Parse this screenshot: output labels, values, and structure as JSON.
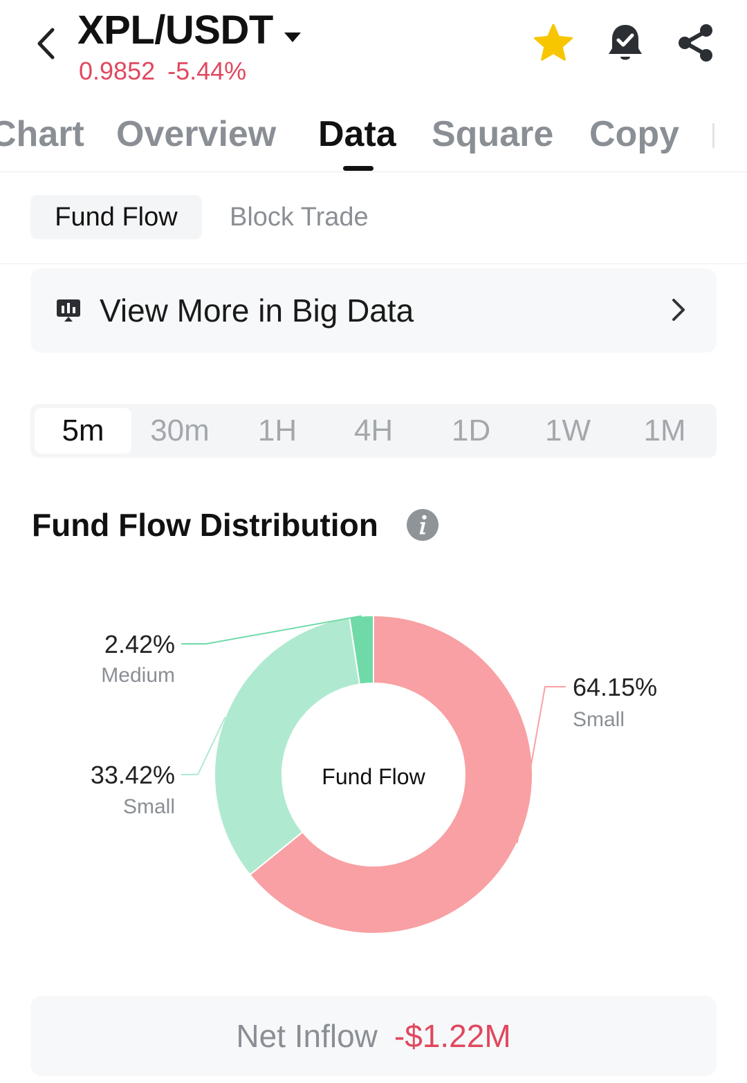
{
  "header": {
    "pair": "XPL/USDT",
    "price": "0.9852",
    "change": "-5.44%",
    "icons": [
      "back-arrow-icon",
      "dropdown-caret-icon",
      "favorite-star-icon",
      "price-alert-bell-icon",
      "share-icon"
    ],
    "colors": {
      "down": "#e0485e",
      "star": "#f7c600"
    }
  },
  "tabs": {
    "items": [
      {
        "label": "Chart"
      },
      {
        "label": "Overview"
      },
      {
        "label": "Data"
      },
      {
        "label": "Square"
      },
      {
        "label": "Copy"
      }
    ],
    "active": "Data"
  },
  "subtabs": {
    "fund_flow": "Fund Flow",
    "block_trade": "Block Trade",
    "active": "Fund Flow"
  },
  "banner": {
    "label": "View More in Big Data",
    "icon": "bar-chart-board-icon",
    "chevron": "chevron-right-icon"
  },
  "timeframes": {
    "options": [
      "5m",
      "30m",
      "1H",
      "4H",
      "1D",
      "1W",
      "1M"
    ],
    "active": "5m"
  },
  "distribution": {
    "title": "Fund Flow Distribution",
    "info_icon": "info-icon"
  },
  "chart_data": {
    "type": "pie",
    "center_label": "Fund Flow",
    "slices": [
      {
        "value": 64.15,
        "label": "64.15%",
        "category": "Small",
        "color": "#f8a0a3"
      },
      {
        "value": 33.42,
        "label": "33.42%",
        "category": "Small",
        "color": "#afead0"
      },
      {
        "value": 2.42,
        "label": "2.42%",
        "category": "Medium",
        "color": "#6fdaa7"
      }
    ]
  },
  "net_inflow": {
    "label": "Net Inflow",
    "value": "-$1.22M"
  }
}
